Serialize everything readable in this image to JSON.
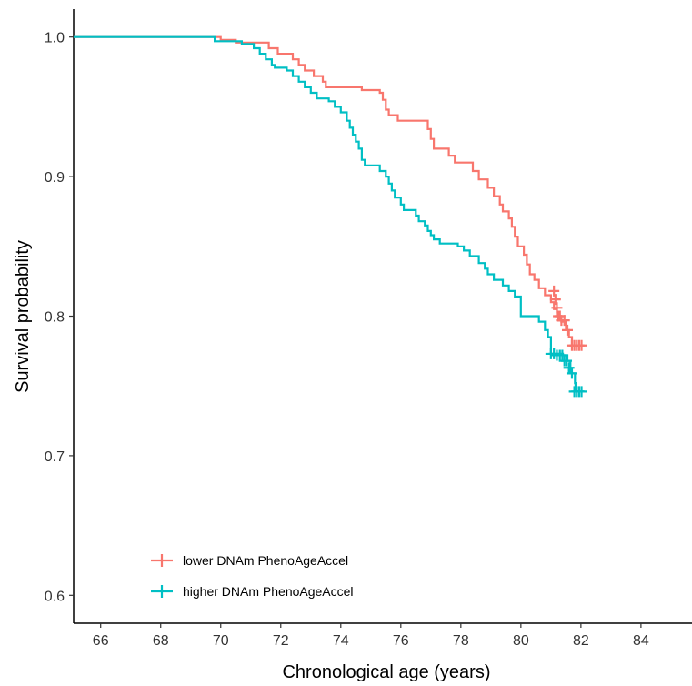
{
  "chart_data": {
    "type": "line",
    "subtype": "kaplan-meier step",
    "xlabel": "Chronological age (years)",
    "ylabel": "Survival probability",
    "xlim": [
      65.1,
      85.7
    ],
    "ylim": [
      0.58,
      1.02
    ],
    "xticks": [
      66,
      68,
      70,
      72,
      74,
      76,
      78,
      80,
      82,
      84
    ],
    "yticks": [
      0.6,
      0.7,
      0.8,
      0.9,
      1.0
    ],
    "xtick_labels": [
      "66",
      "68",
      "70",
      "72",
      "74",
      "76",
      "78",
      "80",
      "82",
      "84"
    ],
    "ytick_labels": [
      "0.6",
      "0.7",
      "0.8",
      "0.9",
      "1.0"
    ],
    "grid": false,
    "legend_position": "bottom-left inside plot",
    "series": [
      {
        "name": "lower DNAm PhenoAgeAccel",
        "color": "#F8766D",
        "steps": [
          [
            65.1,
            1.0
          ],
          [
            69.4,
            1.0
          ],
          [
            70.0,
            0.998
          ],
          [
            70.5,
            0.996
          ],
          [
            71.6,
            0.992
          ],
          [
            71.9,
            0.988
          ],
          [
            72.4,
            0.984
          ],
          [
            72.6,
            0.98
          ],
          [
            72.8,
            0.976
          ],
          [
            73.1,
            0.972
          ],
          [
            73.4,
            0.968
          ],
          [
            73.5,
            0.964
          ],
          [
            74.7,
            0.962
          ],
          [
            75.3,
            0.96
          ],
          [
            75.4,
            0.955
          ],
          [
            75.5,
            0.948
          ],
          [
            75.6,
            0.944
          ],
          [
            75.9,
            0.94
          ],
          [
            76.9,
            0.934
          ],
          [
            77.0,
            0.927
          ],
          [
            77.1,
            0.92
          ],
          [
            77.6,
            0.915
          ],
          [
            77.8,
            0.91
          ],
          [
            78.4,
            0.904
          ],
          [
            78.6,
            0.898
          ],
          [
            78.9,
            0.892
          ],
          [
            79.1,
            0.886
          ],
          [
            79.3,
            0.88
          ],
          [
            79.4,
            0.875
          ],
          [
            79.6,
            0.87
          ],
          [
            79.7,
            0.864
          ],
          [
            79.8,
            0.857
          ],
          [
            79.9,
            0.85
          ],
          [
            80.1,
            0.844
          ],
          [
            80.2,
            0.837
          ],
          [
            80.3,
            0.83
          ],
          [
            80.45,
            0.826
          ],
          [
            80.6,
            0.82
          ],
          [
            80.8,
            0.815
          ],
          [
            81.0,
            0.81
          ],
          [
            81.1,
            0.805
          ],
          [
            81.2,
            0.8
          ],
          [
            81.35,
            0.796
          ],
          [
            81.5,
            0.79
          ],
          [
            81.6,
            0.785
          ],
          [
            81.7,
            0.779
          ],
          [
            82.1,
            0.779
          ]
        ],
        "censor_points": [
          [
            81.1,
            0.818
          ],
          [
            81.15,
            0.812
          ],
          [
            81.2,
            0.806
          ],
          [
            81.25,
            0.8
          ],
          [
            81.3,
            0.8
          ],
          [
            81.35,
            0.797
          ],
          [
            81.45,
            0.797
          ],
          [
            81.55,
            0.79
          ],
          [
            81.7,
            0.779
          ],
          [
            81.78,
            0.779
          ],
          [
            81.86,
            0.779
          ],
          [
            81.94,
            0.779
          ],
          [
            82.02,
            0.779
          ]
        ]
      },
      {
        "name": "higher DNAm PhenoAgeAccel",
        "color": "#00BFC4",
        "steps": [
          [
            65.1,
            1.0
          ],
          [
            69.7,
            1.0
          ],
          [
            69.8,
            0.997
          ],
          [
            70.7,
            0.995
          ],
          [
            71.1,
            0.992
          ],
          [
            71.3,
            0.988
          ],
          [
            71.5,
            0.984
          ],
          [
            71.7,
            0.98
          ],
          [
            71.8,
            0.978
          ],
          [
            72.2,
            0.976
          ],
          [
            72.4,
            0.972
          ],
          [
            72.6,
            0.968
          ],
          [
            72.8,
            0.964
          ],
          [
            73.0,
            0.96
          ],
          [
            73.2,
            0.956
          ],
          [
            73.6,
            0.954
          ],
          [
            73.8,
            0.95
          ],
          [
            74.0,
            0.946
          ],
          [
            74.2,
            0.94
          ],
          [
            74.3,
            0.935
          ],
          [
            74.4,
            0.93
          ],
          [
            74.5,
            0.925
          ],
          [
            74.6,
            0.92
          ],
          [
            74.7,
            0.912
          ],
          [
            74.8,
            0.908
          ],
          [
            75.3,
            0.904
          ],
          [
            75.5,
            0.9
          ],
          [
            75.6,
            0.895
          ],
          [
            75.7,
            0.89
          ],
          [
            75.8,
            0.885
          ],
          [
            76.0,
            0.88
          ],
          [
            76.1,
            0.876
          ],
          [
            76.5,
            0.872
          ],
          [
            76.6,
            0.868
          ],
          [
            76.8,
            0.865
          ],
          [
            76.9,
            0.861
          ],
          [
            77.0,
            0.858
          ],
          [
            77.1,
            0.855
          ],
          [
            77.3,
            0.852
          ],
          [
            77.9,
            0.85
          ],
          [
            78.1,
            0.847
          ],
          [
            78.3,
            0.843
          ],
          [
            78.6,
            0.838
          ],
          [
            78.8,
            0.834
          ],
          [
            78.9,
            0.83
          ],
          [
            79.1,
            0.826
          ],
          [
            79.4,
            0.822
          ],
          [
            79.6,
            0.818
          ],
          [
            79.8,
            0.814
          ],
          [
            80.0,
            0.8
          ],
          [
            80.6,
            0.796
          ],
          [
            80.8,
            0.79
          ],
          [
            80.9,
            0.785
          ],
          [
            81.0,
            0.773
          ],
          [
            81.4,
            0.772
          ],
          [
            81.55,
            0.768
          ],
          [
            81.65,
            0.759
          ],
          [
            81.8,
            0.752
          ],
          [
            81.82,
            0.746
          ],
          [
            82.1,
            0.746
          ]
        ],
        "censor_points": [
          [
            81.0,
            0.773
          ],
          [
            81.1,
            0.773
          ],
          [
            81.2,
            0.772
          ],
          [
            81.3,
            0.772
          ],
          [
            81.38,
            0.772
          ],
          [
            81.45,
            0.768
          ],
          [
            81.52,
            0.768
          ],
          [
            81.6,
            0.763
          ],
          [
            81.7,
            0.759
          ],
          [
            81.78,
            0.746
          ],
          [
            81.86,
            0.746
          ],
          [
            81.94,
            0.746
          ],
          [
            82.02,
            0.746
          ]
        ]
      }
    ]
  }
}
